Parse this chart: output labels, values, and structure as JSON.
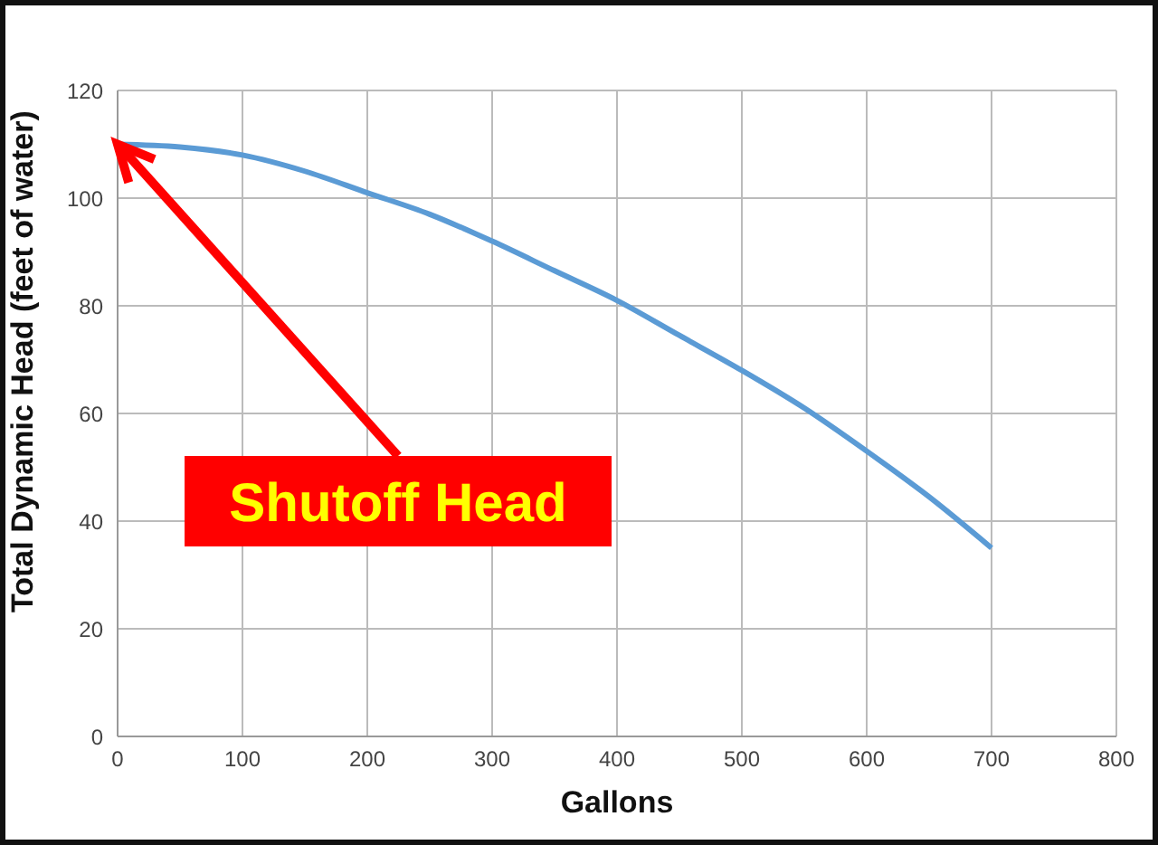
{
  "chart_data": {
    "type": "line",
    "xlabel": "Gallons",
    "ylabel": "Total Dynamic Head (feet of water)",
    "x": [
      0,
      50,
      100,
      150,
      200,
      250,
      300,
      350,
      400,
      450,
      500,
      550,
      600,
      650,
      700
    ],
    "series": [
      {
        "color": "#5b9bd5",
        "values": [
          110,
          109.5,
          108,
          105,
          101,
          97,
          92,
          86.5,
          81,
          74.5,
          68,
          61,
          53,
          44.5,
          35
        ]
      }
    ],
    "xlim": [
      0,
      800
    ],
    "xticks": [
      0,
      100,
      200,
      300,
      400,
      500,
      600,
      700,
      800
    ],
    "ylim": [
      0,
      120
    ],
    "yticks": [
      0,
      20,
      40,
      60,
      80,
      100,
      120
    ],
    "grid": true,
    "legend": false,
    "marker": "none",
    "line_style": "solid",
    "annotations": [
      {
        "text": "Shutoff Head",
        "x": 0,
        "y": 110
      }
    ]
  }
}
